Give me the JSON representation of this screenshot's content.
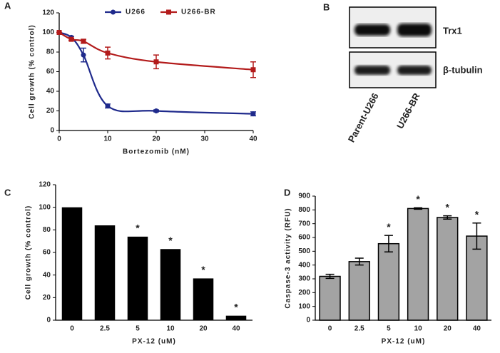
{
  "panel_labels": [
    "A",
    "B",
    "C",
    "D"
  ],
  "blot": {
    "bands": [
      "Trx1",
      "β-tubulin"
    ],
    "lanes": [
      "Parent-U266",
      "U266-BR"
    ]
  },
  "chart_data": [
    {
      "type": "line",
      "xlabel": "Bortezomib (nM)",
      "ylabel": "Cell growth (% control)",
      "x": [
        0,
        2.5,
        5,
        10,
        20,
        40
      ],
      "xlim": [
        0,
        40
      ],
      "xticks": [
        0,
        10,
        20,
        30,
        40
      ],
      "ylim": [
        0,
        120
      ],
      "yticks": [
        0,
        20,
        40,
        60,
        80,
        100,
        120
      ],
      "legend": "top",
      "series": [
        {
          "name": "U266",
          "color": "#1f2a8c",
          "marker": "circle",
          "values": [
            100,
            95,
            77,
            25,
            20,
            17
          ],
          "errors": [
            0,
            1,
            7,
            2,
            1,
            2
          ]
        },
        {
          "name": "U266-BR",
          "color": "#b31b1b",
          "marker": "square",
          "values": [
            100,
            93,
            91,
            79,
            70,
            62
          ],
          "errors": [
            0,
            1,
            2,
            6,
            7,
            8
          ]
        }
      ]
    },
    {
      "type": "bar",
      "xlabel": "PX-12 (uM)",
      "ylabel": "Cell growth (% control)",
      "categories": [
        "0",
        "2.5",
        "5",
        "10",
        "20",
        "40"
      ],
      "values": [
        100,
        84,
        74,
        63,
        37,
        4
      ],
      "color": "#000000",
      "ylim": [
        0,
        120
      ],
      "yticks": [
        0,
        20,
        40,
        60,
        80,
        100,
        120
      ],
      "annotations": [
        {
          "text": "*",
          "category": "5"
        },
        {
          "text": "*",
          "category": "10"
        },
        {
          "text": "*",
          "category": "20"
        },
        {
          "text": "*",
          "category": "40"
        }
      ]
    },
    {
      "type": "bar",
      "xlabel": "PX-12 (uM)",
      "ylabel": "Caspase-3 activity (RFU)",
      "categories": [
        "0",
        "2.5",
        "5",
        "10",
        "20",
        "40"
      ],
      "values": [
        318,
        425,
        555,
        810,
        745,
        610
      ],
      "errors": [
        15,
        25,
        60,
        5,
        12,
        95
      ],
      "color": "#a3a3a3",
      "ylim": [
        0,
        900
      ],
      "yticks": [
        0,
        100,
        200,
        300,
        400,
        500,
        600,
        700,
        800,
        900
      ],
      "annotations": [
        {
          "text": "*",
          "category": "5"
        },
        {
          "text": "*",
          "category": "10"
        },
        {
          "text": "*",
          "category": "20"
        },
        {
          "text": "*",
          "category": "40"
        }
      ]
    }
  ]
}
